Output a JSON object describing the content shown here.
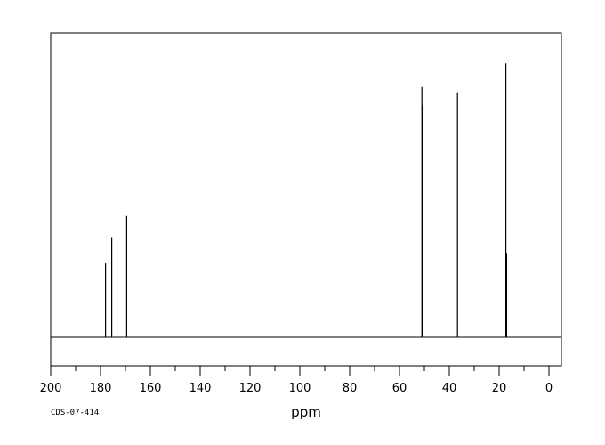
{
  "chart_data": {
    "type": "line",
    "xlabel": "ppm",
    "ylabel": "",
    "title": "",
    "xlim": [
      200,
      -5
    ],
    "ylim": [
      0,
      100
    ],
    "x_reversed": true,
    "grid": false,
    "legend": "none",
    "x_ticks": [
      200,
      180,
      160,
      140,
      120,
      100,
      80,
      60,
      40,
      20,
      0
    ],
    "x_tick_labels": [
      "200",
      "180",
      "160",
      "140",
      "120",
      "100",
      "80",
      "60",
      "40",
      "20",
      "0"
    ],
    "series": [
      {
        "peaks": [
          {
            "ppm": 178.0,
            "intensity": 28
          },
          {
            "ppm": 175.5,
            "intensity": 38
          },
          {
            "ppm": 169.5,
            "intensity": 46
          },
          {
            "ppm": 51.0,
            "intensity": 95
          },
          {
            "ppm": 50.7,
            "intensity": 88
          },
          {
            "ppm": 36.7,
            "intensity": 93
          },
          {
            "ppm": 17.3,
            "intensity": 104
          },
          {
            "ppm": 17.0,
            "intensity": 32
          }
        ]
      }
    ],
    "code_label": "CDS-07-414",
    "colors": {
      "line": "#000000",
      "frame": "#000000",
      "background": "#ffffff"
    }
  }
}
